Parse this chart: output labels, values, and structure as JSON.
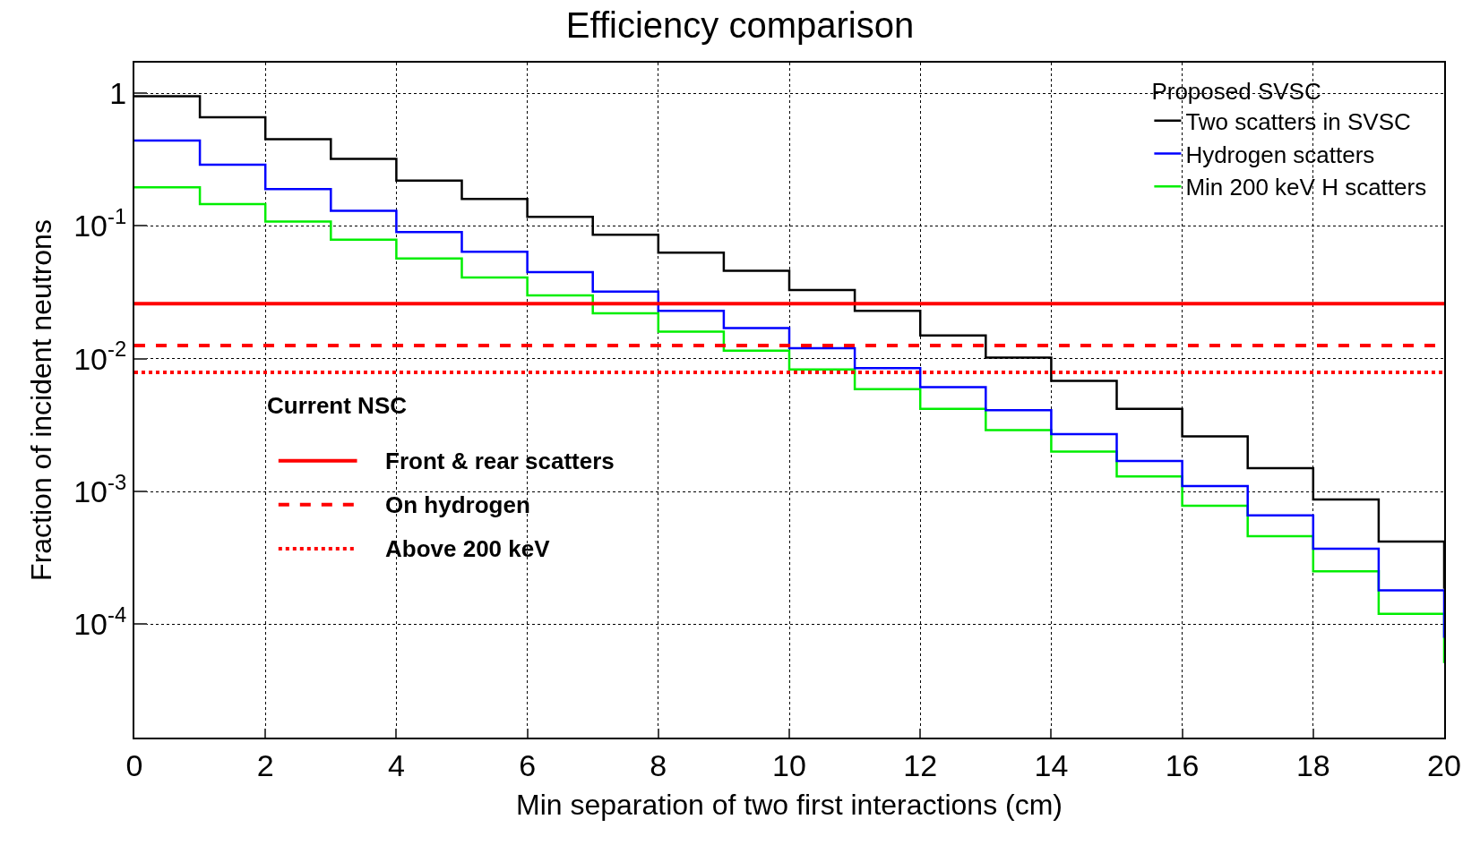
{
  "chart_data": {
    "type": "step",
    "title": "Efficiency comparison",
    "xlabel": "Min separation of two first interactions (cm)",
    "ylabel": "Fraction of incident neutrons",
    "legend_title": "Proposed SVSC",
    "legend": "top right",
    "grid": true,
    "log": "y",
    "line_style": "solid",
    "marker": "none",
    "x": [
      0,
      1,
      2,
      3,
      4,
      5,
      6,
      7,
      8,
      9,
      10,
      11,
      12,
      13,
      14,
      15,
      16,
      17,
      18,
      19,
      20
    ],
    "xlim": [
      0,
      20
    ],
    "xticks": [
      0,
      2,
      4,
      6,
      8,
      10,
      12,
      14,
      16,
      18,
      20
    ],
    "ylim": [
      1.4e-05,
      1.7
    ],
    "yticks": [
      {
        "value": 1,
        "label": "1"
      },
      {
        "value": 0.1,
        "label": "10$^{-1}$"
      },
      {
        "value": 0.01,
        "label": "10$^{-2}$"
      },
      {
        "value": 0.001,
        "label": "10$^{-3}$"
      },
      {
        "value": 0.0001,
        "label": "10$^{-4}$"
      }
    ],
    "series": [
      {
        "name": "Two scatters in SVSC",
        "color": "#000000",
        "values": [
          0.95,
          0.66,
          0.45,
          0.32,
          0.22,
          0.16,
          0.117,
          0.086,
          0.063,
          0.046,
          0.033,
          0.023,
          0.015,
          0.0102,
          0.0068,
          0.0042,
          0.0026,
          0.0015,
          0.00087,
          0.00042,
          0.000185
        ]
      },
      {
        "name": "Hydrogen scatters",
        "color": "#0000ff",
        "values": [
          0.44,
          0.29,
          0.19,
          0.13,
          0.09,
          0.064,
          0.045,
          0.032,
          0.023,
          0.017,
          0.012,
          0.0085,
          0.0061,
          0.0041,
          0.0027,
          0.0017,
          0.0011,
          0.00066,
          0.00037,
          0.00018,
          7.9e-05
        ]
      },
      {
        "name": "Min 200 keV H scatters",
        "color": "#00ee00",
        "values": [
          0.196,
          0.146,
          0.108,
          0.079,
          0.057,
          0.041,
          0.03,
          0.022,
          0.016,
          0.0115,
          0.0083,
          0.0059,
          0.0042,
          0.0029,
          0.002,
          0.0013,
          0.00078,
          0.00046,
          0.00025,
          0.00012,
          5.1e-05
        ]
      }
    ],
    "ref_lines": [
      {
        "axis": "y",
        "value": 0.026,
        "label": "Front & rear scatters",
        "color": "#ff0000",
        "line_style": "solid"
      },
      {
        "axis": "y",
        "value": 0.0126,
        "label": "On hydrogen",
        "color": "#ff0000",
        "line_style": "dashed"
      },
      {
        "axis": "y",
        "value": 0.0079,
        "label": "Above 200 keV",
        "color": "#ff0000",
        "line_style": "dotted"
      }
    ],
    "annotations": [
      "Current NSC"
    ]
  }
}
